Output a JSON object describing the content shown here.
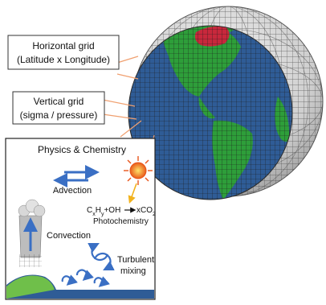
{
  "callouts": {
    "horizontal": {
      "line1": "Horizontal grid",
      "line2": "(Latitude x Longitude)"
    },
    "vertical": {
      "line1": "Vertical grid",
      "line2": "(sigma / pressure)"
    }
  },
  "inset": {
    "title": "Physics & Chemistry",
    "advection": "Advection",
    "convection": "Convection",
    "photochemistry": "Photochemistry",
    "reaction": {
      "reactant": "C",
      "reactant_sub1": "x",
      "reactant_mid": "H",
      "reactant_sub2": "y",
      "plus": "+OH",
      "product": "xCO",
      "product_sub": "2"
    },
    "turbulent_line1": "Turbulent",
    "turbulent_line2": "mixing"
  },
  "colors": {
    "ocean": "#2f5c96",
    "land": "#2e9e3a",
    "hotspot": "#c8283c",
    "grid_shell": "#d9d9d9",
    "callout_line": "#f0a070",
    "arrow_blue": "#3a6fc4",
    "sun": "#f2b21d"
  }
}
